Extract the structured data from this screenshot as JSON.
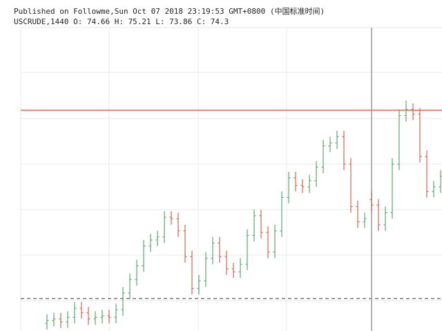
{
  "chart_data": {
    "type": "ohlc",
    "header": [
      "Published on Followme,Sun Oct 07 2018 23:19:53 GMT+0800 (中国标准时间)",
      "USCRUDE,1440 O: 74.66 H: 75.21 L: 73.86 C: 74.3"
    ],
    "ylim": [
      66,
      86
    ],
    "up_color": "#5aa872",
    "down_color": "#e0604a",
    "crosshair_index": 47,
    "hlines": [
      {
        "value": 80.55,
        "color": "#d9432f",
        "dashed": false
      },
      {
        "value": 68.14,
        "color": "#777777",
        "dashed": true
      }
    ],
    "open": [
      66.5,
      66.7,
      66.8,
      66.6,
      66.9,
      67.5,
      67.2,
      66.8,
      66.9,
      67.0,
      66.9,
      67.4,
      68.5,
      69.4,
      70.3,
      71.6,
      72.0,
      72.2,
      73.5,
      73.4,
      72.6,
      70.9,
      68.8,
      69.3,
      70.8,
      71.8,
      70.9,
      70.1,
      69.9,
      70.4,
      72.3,
      73.6,
      72.5,
      71.2,
      72.6,
      74.8,
      76.1,
      75.6,
      75.5,
      75.9,
      76.8,
      78.2,
      78.4,
      78.8,
      77.0,
      74.2,
      73.2,
      74.66,
      74.3,
      73.0,
      73.8,
      77.0,
      80.2,
      80.6,
      80.3,
      77.5,
      75.2,
      75.5
    ],
    "high": [
      67.1,
      67.2,
      67.2,
      67.3,
      67.9,
      67.9,
      67.6,
      67.3,
      67.4,
      67.4,
      67.8,
      68.9,
      69.8,
      70.7,
      72.0,
      72.4,
      72.6,
      73.9,
      73.9,
      73.8,
      73.0,
      71.3,
      69.7,
      71.2,
      72.2,
      72.2,
      71.3,
      70.5,
      70.8,
      72.7,
      74.0,
      74.0,
      72.9,
      73.0,
      75.2,
      76.5,
      76.5,
      76.0,
      76.3,
      77.2,
      78.6,
      78.8,
      79.2,
      79.2,
      77.4,
      74.6,
      73.8,
      75.21,
      74.7,
      74.2,
      77.4,
      80.6,
      81.2,
      81.0,
      80.7,
      77.9,
      75.9,
      76.6
    ],
    "low": [
      66.1,
      66.3,
      66.2,
      66.2,
      66.5,
      66.8,
      66.4,
      66.4,
      66.5,
      66.5,
      66.5,
      67.0,
      68.1,
      69.0,
      69.9,
      71.2,
      71.6,
      71.8,
      73.0,
      72.2,
      70.5,
      68.4,
      68.4,
      68.9,
      70.4,
      70.5,
      69.7,
      69.5,
      69.5,
      70.0,
      71.9,
      72.1,
      70.8,
      70.8,
      72.2,
      74.4,
      75.2,
      75.1,
      75.1,
      75.5,
      76.4,
      77.8,
      78.0,
      76.6,
      73.8,
      72.8,
      72.8,
      73.86,
      72.6,
      72.6,
      73.4,
      76.6,
      79.8,
      79.9,
      77.1,
      74.8,
      74.8,
      75.1
    ],
    "close": [
      66.7,
      66.8,
      66.6,
      66.9,
      67.5,
      67.2,
      66.8,
      66.9,
      67.0,
      66.9,
      67.4,
      68.5,
      69.4,
      70.3,
      71.6,
      72.0,
      72.2,
      73.5,
      73.4,
      72.6,
      70.9,
      68.8,
      69.3,
      70.8,
      71.8,
      70.9,
      70.1,
      69.9,
      70.4,
      72.3,
      73.6,
      72.5,
      71.2,
      72.6,
      74.8,
      76.1,
      75.6,
      75.5,
      75.9,
      76.8,
      78.2,
      78.4,
      78.8,
      77.0,
      74.2,
      73.2,
      73.4,
      74.3,
      73.0,
      73.8,
      77.0,
      80.2,
      80.6,
      80.3,
      77.5,
      75.2,
      75.5,
      76.2
    ]
  }
}
